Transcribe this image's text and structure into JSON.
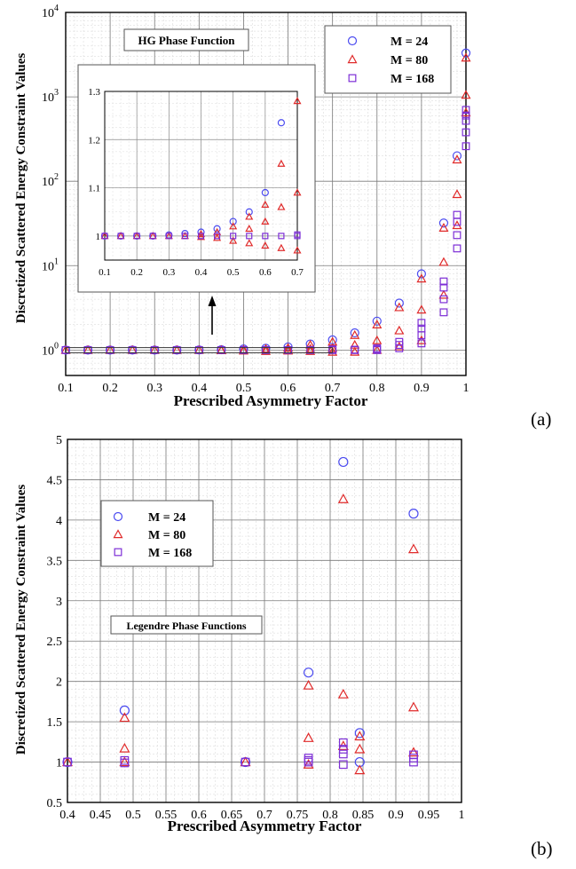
{
  "colors": {
    "m24": "#4b4bf0",
    "m80": "#e02a2a",
    "m168": "#7d2ed6"
  },
  "panel_a": {
    "label": "(a)"
  },
  "panel_b": {
    "label": "(b)"
  },
  "chart_data": [
    {
      "type": "scatter",
      "id": "a",
      "ylog": true,
      "xlabel": "Prescribed Asymmetry Factor",
      "ylabel": "Discretized Scattered Energy Constraint Values",
      "xlim": [
        0.1,
        1.0
      ],
      "ylim": [
        0.5,
        10000
      ],
      "xticks": [
        0.1,
        0.2,
        0.3,
        0.4,
        0.5,
        0.6,
        0.7,
        0.8,
        0.9,
        1
      ],
      "xticklabels": [
        "0.1",
        "0.2",
        "0.3",
        "0.4",
        "0.5",
        "0.6",
        "0.7",
        "0.8",
        "0.9",
        "1"
      ],
      "yticks": [
        1,
        10,
        100,
        1000,
        10000
      ],
      "ytick_base": "10",
      "ytick_exp": [
        "0",
        "1",
        "2",
        "3",
        "4"
      ],
      "grid": true,
      "annotation": "HG Phase Function",
      "legend": {
        "placement": "top-right",
        "entries": [
          "M = 24",
          "M = 80",
          "M = 168"
        ]
      },
      "series": [
        {
          "name": "M = 24",
          "marker": "circle",
          "points": [
            [
              0.1,
              1
            ],
            [
              0.15,
              1
            ],
            [
              0.2,
              1
            ],
            [
              0.25,
              1
            ],
            [
              0.3,
              1
            ],
            [
              0.35,
              1
            ],
            [
              0.4,
              1.005
            ],
            [
              0.45,
              1.01
            ],
            [
              0.5,
              1.03
            ],
            [
              0.55,
              1.05
            ],
            [
              0.6,
              1.09
            ],
            [
              0.65,
              1.18
            ],
            [
              0.7,
              1.32
            ],
            [
              0.75,
              1.6
            ],
            [
              0.8,
              2.2
            ],
            [
              0.85,
              3.6
            ],
            [
              0.9,
              8
            ],
            [
              0.95,
              32
            ],
            [
              0.98,
              200
            ],
            [
              1.0,
              3300
            ]
          ]
        },
        {
          "name": "M = 80",
          "marker": "triangle",
          "points": [
            [
              0.1,
              1
            ],
            [
              0.15,
              1
            ],
            [
              0.2,
              1
            ],
            [
              0.25,
              1
            ],
            [
              0.3,
              1
            ],
            [
              0.35,
              1
            ],
            [
              0.4,
              1
            ],
            [
              0.45,
              1
            ],
            [
              0.45,
              0.99
            ],
            [
              0.5,
              1.01
            ],
            [
              0.5,
              0.98
            ],
            [
              0.55,
              1.03
            ],
            [
              0.55,
              0.97
            ],
            [
              0.6,
              1.06
            ],
            [
              0.6,
              0.98
            ],
            [
              0.6,
              1.0
            ],
            [
              0.65,
              1.15
            ],
            [
              0.65,
              1.03
            ],
            [
              0.65,
              0.97
            ],
            [
              0.7,
              1.25
            ],
            [
              0.7,
              1.05
            ],
            [
              0.7,
              0.95
            ],
            [
              0.75,
              1.5
            ],
            [
              0.75,
              1.15
            ],
            [
              0.75,
              0.95
            ],
            [
              0.8,
              2.0
            ],
            [
              0.8,
              1.3
            ],
            [
              0.8,
              1.0
            ],
            [
              0.85,
              3.2
            ],
            [
              0.85,
              1.7
            ],
            [
              0.85,
              1.1
            ],
            [
              0.9,
              7
            ],
            [
              0.9,
              3
            ],
            [
              0.9,
              1.3
            ],
            [
              0.95,
              28
            ],
            [
              0.95,
              11
            ],
            [
              0.95,
              4.5
            ],
            [
              0.98,
              180
            ],
            [
              0.98,
              70
            ],
            [
              0.98,
              30
            ],
            [
              1.0,
              2900
            ],
            [
              1.0,
              1050
            ],
            [
              1.0,
              650
            ]
          ]
        },
        {
          "name": "M = 168",
          "marker": "square",
          "points": [
            [
              0.1,
              1
            ],
            [
              0.15,
              1
            ],
            [
              0.2,
              1
            ],
            [
              0.25,
              1
            ],
            [
              0.3,
              1
            ],
            [
              0.35,
              1
            ],
            [
              0.4,
              1
            ],
            [
              0.45,
              1
            ],
            [
              0.5,
              1
            ],
            [
              0.55,
              1
            ],
            [
              0.6,
              1
            ],
            [
              0.65,
              1
            ],
            [
              0.7,
              1
            ],
            [
              0.7,
              1.02
            ],
            [
              0.75,
              1
            ],
            [
              0.75,
              1.01
            ],
            [
              0.8,
              1.0
            ],
            [
              0.8,
              1.02
            ],
            [
              0.8,
              1.05
            ],
            [
              0.85,
              1.05
            ],
            [
              0.85,
              1.15
            ],
            [
              0.85,
              1.25
            ],
            [
              0.9,
              1.2
            ],
            [
              0.9,
              1.5
            ],
            [
              0.9,
              1.8
            ],
            [
              0.9,
              2.1
            ],
            [
              0.95,
              2.8
            ],
            [
              0.95,
              4
            ],
            [
              0.95,
              5.5
            ],
            [
              0.95,
              6.5
            ],
            [
              0.98,
              16
            ],
            [
              0.98,
              23
            ],
            [
              0.98,
              33
            ],
            [
              0.98,
              40
            ],
            [
              1.0,
              260
            ],
            [
              1.0,
              380
            ],
            [
              1.0,
              520
            ],
            [
              1.0,
              600
            ],
            [
              1.0,
              700
            ]
          ]
        }
      ],
      "inset": {
        "xlim": [
          0.1,
          0.7
        ],
        "ylim": [
          0.95,
          1.3
        ],
        "xticks": [
          0.1,
          0.2,
          0.3,
          0.4,
          0.5,
          0.6,
          0.7
        ],
        "xticklabels": [
          "0.1",
          "0.2",
          "0.3",
          "0.4",
          "0.5",
          "0.6",
          "0.7"
        ],
        "yticks": [
          1.0,
          1.1,
          1.2,
          1.3
        ],
        "yticklabels": [
          "1",
          "1.1",
          "1.2",
          "1.3"
        ],
        "series": [
          {
            "name": "M = 24",
            "marker": "circle",
            "points": [
              [
                0.1,
                1
              ],
              [
                0.15,
                1
              ],
              [
                0.2,
                1
              ],
              [
                0.25,
                1
              ],
              [
                0.3,
                1.002
              ],
              [
                0.35,
                1.005
              ],
              [
                0.4,
                1.008
              ],
              [
                0.45,
                1.015
              ],
              [
                0.5,
                1.03
              ],
              [
                0.55,
                1.05
              ],
              [
                0.6,
                1.09
              ],
              [
                0.65,
                1.235
              ]
            ]
          },
          {
            "name": "M = 80",
            "marker": "triangle",
            "points": [
              [
                0.1,
                1
              ],
              [
                0.15,
                1
              ],
              [
                0.2,
                1
              ],
              [
                0.25,
                1
              ],
              [
                0.3,
                1
              ],
              [
                0.35,
                1
              ],
              [
                0.4,
                1.004
              ],
              [
                0.4,
                0.998
              ],
              [
                0.45,
                1.008
              ],
              [
                0.45,
                0.996
              ],
              [
                0.5,
                1.02
              ],
              [
                0.5,
                0.99
              ],
              [
                0.55,
                1.04
              ],
              [
                0.55,
                1.015
              ],
              [
                0.55,
                0.985
              ],
              [
                0.6,
                1.065
              ],
              [
                0.6,
                1.03
              ],
              [
                0.6,
                0.98
              ],
              [
                0.65,
                1.15
              ],
              [
                0.65,
                1.06
              ],
              [
                0.65,
                0.975
              ],
              [
                0.7,
                1.28
              ],
              [
                0.7,
                1.09
              ],
              [
                0.7,
                0.97
              ]
            ]
          },
          {
            "name": "M = 168",
            "marker": "square",
            "points": [
              [
                0.1,
                1
              ],
              [
                0.15,
                1
              ],
              [
                0.2,
                1
              ],
              [
                0.25,
                1
              ],
              [
                0.3,
                1
              ],
              [
                0.35,
                1
              ],
              [
                0.4,
                1
              ],
              [
                0.45,
                1
              ],
              [
                0.5,
                1
              ],
              [
                0.55,
                1
              ],
              [
                0.6,
                1
              ],
              [
                0.65,
                1
              ],
              [
                0.7,
                1
              ],
              [
                0.7,
                1.003
              ]
            ]
          }
        ]
      }
    },
    {
      "type": "scatter",
      "id": "b",
      "ylog": false,
      "xlabel": "Prescribed Asymmetry Factor",
      "ylabel": "Discretized Scattered Energy Constraint Values",
      "xlim": [
        0.4,
        1.0
      ],
      "ylim": [
        0.5,
        5.0
      ],
      "xticks": [
        0.4,
        0.45,
        0.5,
        0.55,
        0.6,
        0.65,
        0.7,
        0.75,
        0.8,
        0.85,
        0.9,
        0.95,
        1
      ],
      "xticklabels": [
        "0.4",
        "0.45",
        "0.5",
        "0.55",
        "0.6",
        "0.65",
        "0.7",
        "0.75",
        "0.8",
        "0.85",
        "0.9",
        "0.95",
        "1"
      ],
      "yticks": [
        0.5,
        1,
        1.5,
        2,
        2.5,
        3,
        3.5,
        4,
        4.5,
        5
      ],
      "yticklabels": [
        "0.5",
        "1",
        "1.5",
        "2",
        "2.5",
        "3",
        "3.5",
        "4",
        "4.5",
        "5"
      ],
      "grid": true,
      "annotation": "Legendre Phase Functions",
      "legend": {
        "placement": "top-left",
        "entries": [
          "M = 24",
          "M = 80",
          "M = 168"
        ]
      },
      "series": [
        {
          "name": "M = 24",
          "marker": "circle",
          "points": [
            [
              0.4,
              1.0
            ],
            [
              0.487,
              1.64
            ],
            [
              0.671,
              1.0
            ],
            [
              0.767,
              2.11
            ],
            [
              0.82,
              4.72
            ],
            [
              0.845,
              1.36
            ],
            [
              0.845,
              1.0
            ],
            [
              0.927,
              4.08
            ]
          ]
        },
        {
          "name": "M = 80",
          "marker": "triangle",
          "points": [
            [
              0.4,
              1.0
            ],
            [
              0.487,
              1.55
            ],
            [
              0.487,
              1.17
            ],
            [
              0.487,
              1.0
            ],
            [
              0.671,
              1.0
            ],
            [
              0.767,
              1.95
            ],
            [
              0.767,
              1.3
            ],
            [
              0.767,
              0.97
            ],
            [
              0.82,
              4.26
            ],
            [
              0.82,
              1.84
            ],
            [
              0.82,
              1.2
            ],
            [
              0.845,
              1.32
            ],
            [
              0.845,
              1.16
            ],
            [
              0.845,
              0.9
            ],
            [
              0.927,
              3.64
            ],
            [
              0.927,
              1.68
            ],
            [
              0.927,
              1.12
            ]
          ]
        },
        {
          "name": "M = 168",
          "marker": "square",
          "points": [
            [
              0.4,
              1.0
            ],
            [
              0.487,
              1.02
            ],
            [
              0.487,
              0.99
            ],
            [
              0.671,
              1.0
            ],
            [
              0.767,
              1.05
            ],
            [
              0.767,
              1.02
            ],
            [
              0.767,
              1.0
            ],
            [
              0.82,
              1.24
            ],
            [
              0.82,
              1.16
            ],
            [
              0.82,
              1.1
            ],
            [
              0.82,
              0.97
            ],
            [
              0.927,
              1.09
            ],
            [
              0.927,
              1.05
            ],
            [
              0.927,
              1.0
            ]
          ]
        }
      ]
    }
  ]
}
